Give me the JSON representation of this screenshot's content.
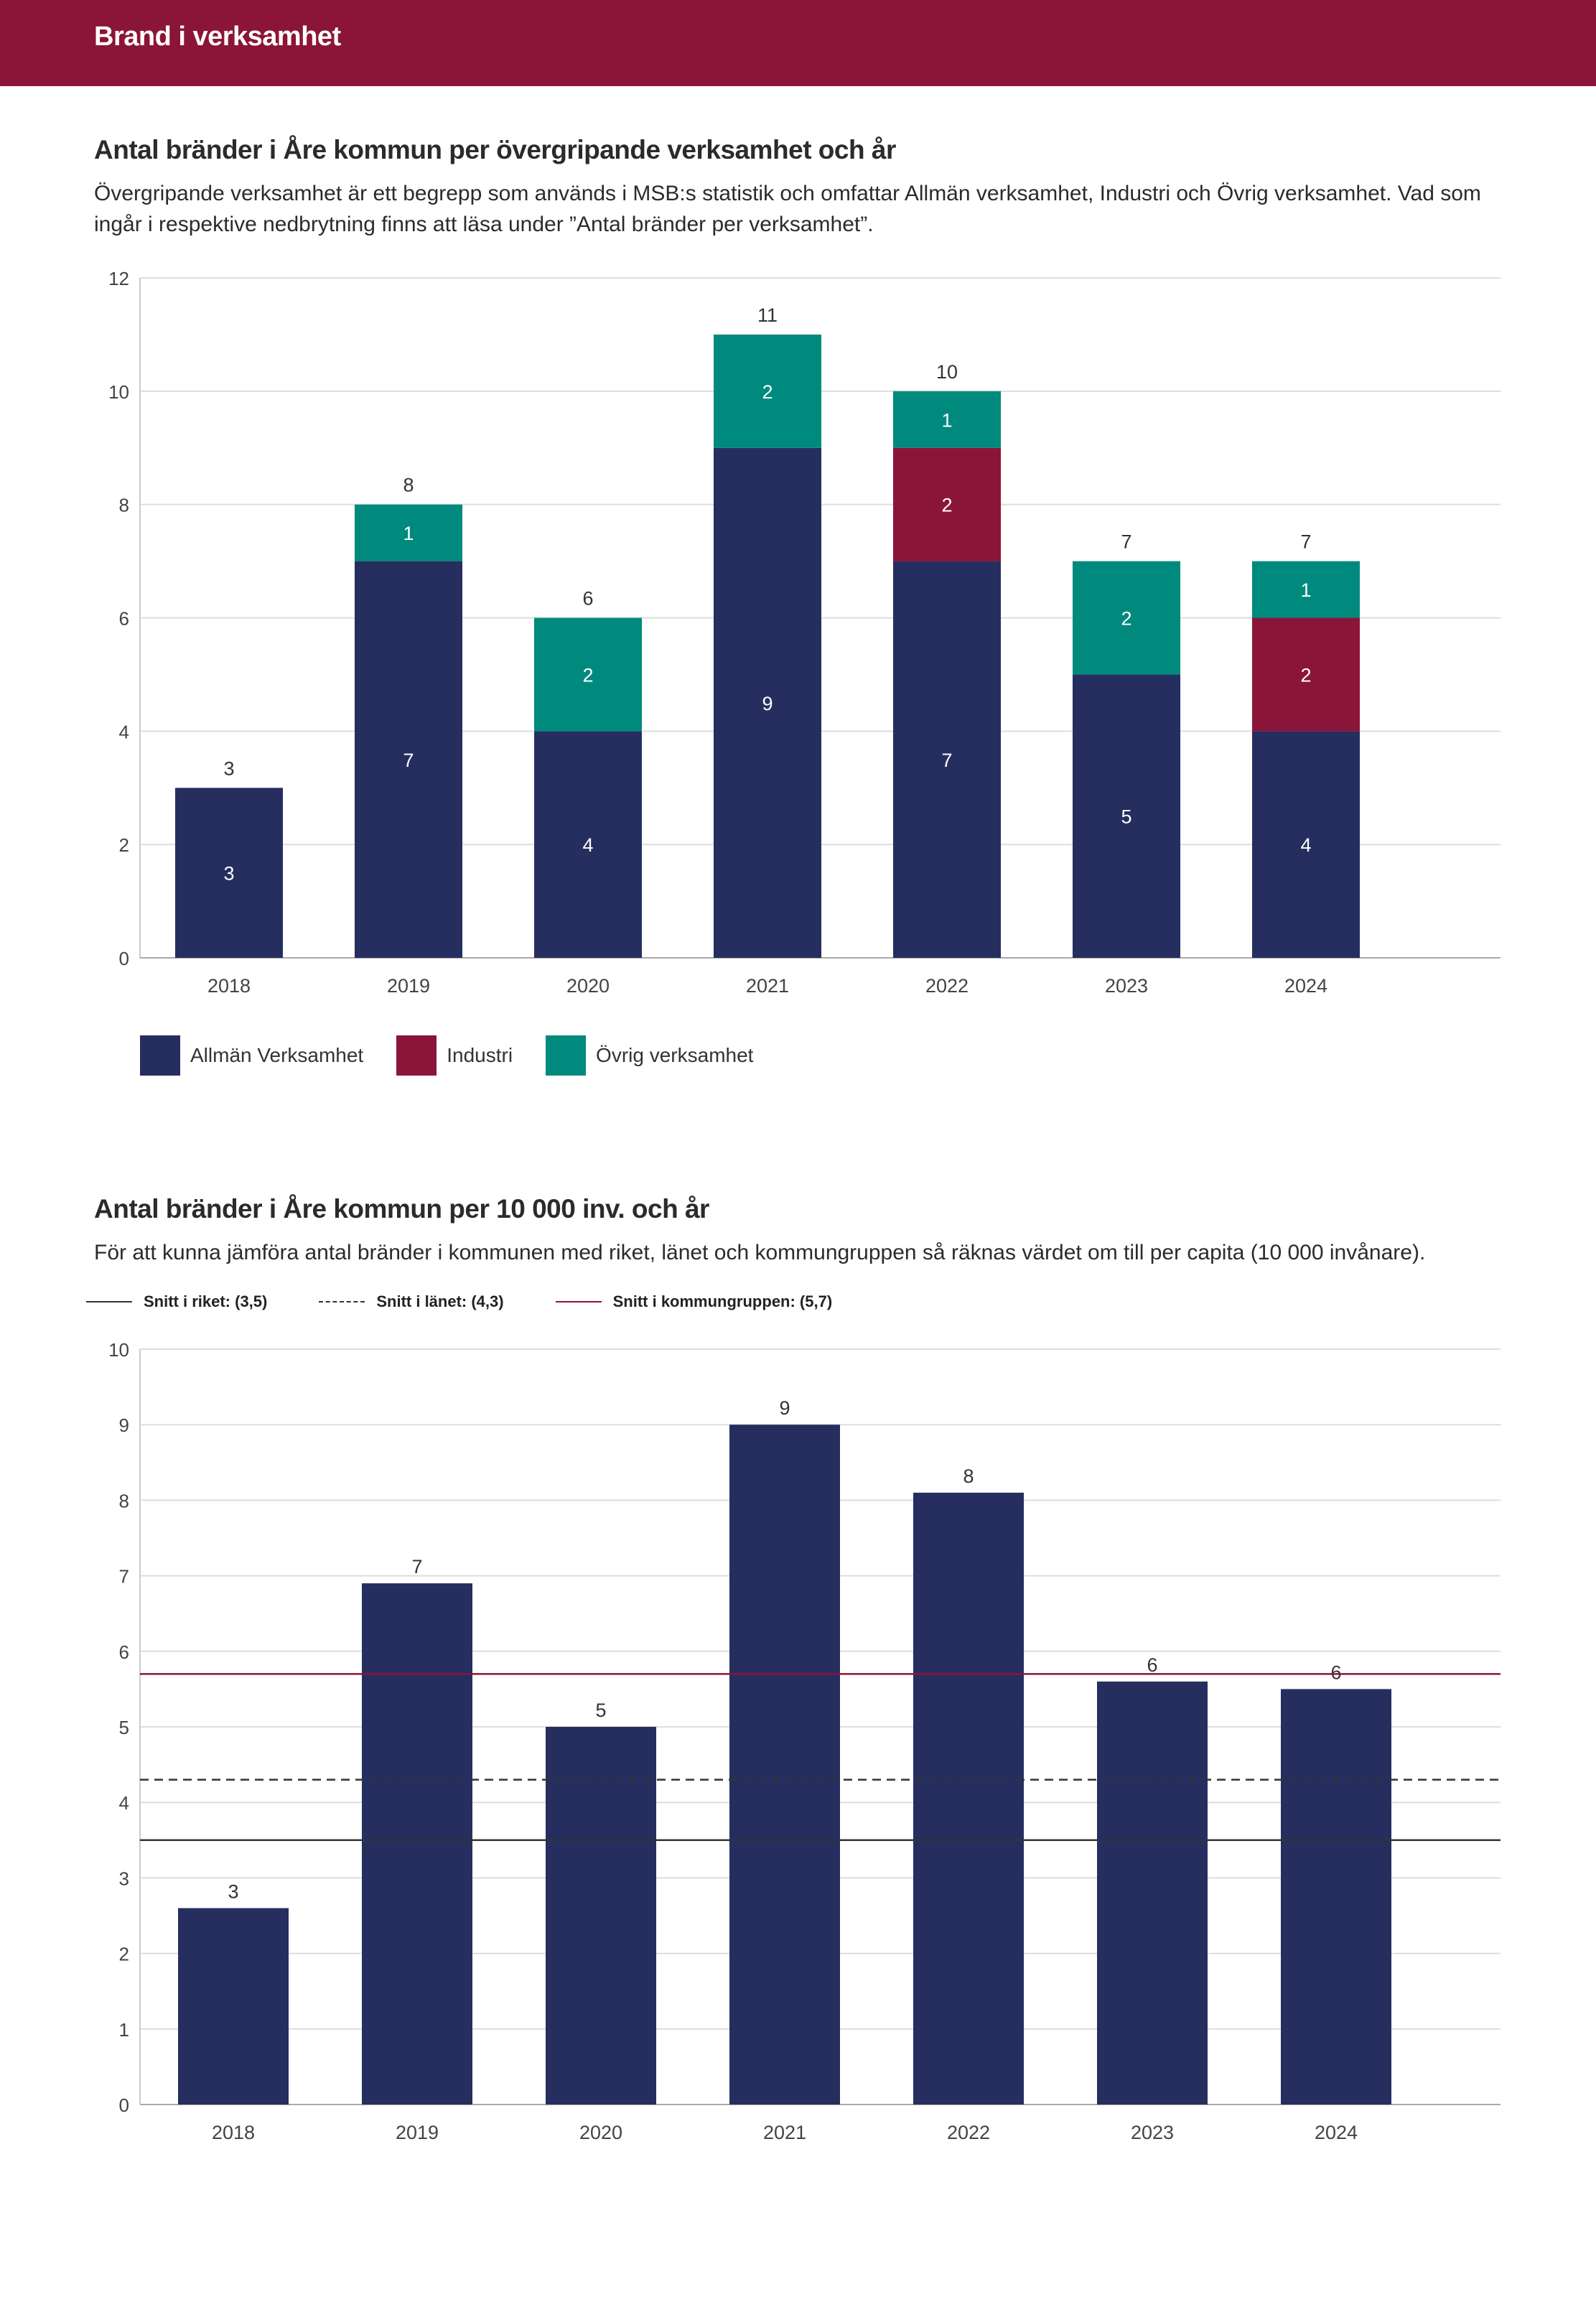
{
  "header": {
    "title": "Brand i verksamhet"
  },
  "colors": {
    "header_bg": "#8b1538",
    "allman": "#262e5f",
    "industri": "#8b1538",
    "ovrig": "#008a7e",
    "kommungrupp_line": "#8b1538"
  },
  "section1": {
    "title": "Antal bränder i Åre kommun per övergripande verksamhet och år",
    "description": "Övergripande verksamhet är ett begrepp som används i MSB:s statistik och omfattar Allmän verksamhet, Industri och Övrig verksamhet. Vad som ingår i respektive nedbrytning finns att läsa under ”Antal bränder per verksamhet”."
  },
  "section2": {
    "title": "Antal bränder i Åre kommun per 10 000 inv. och år",
    "description": "För att kunna jämföra antal bränder i kommunen med riket, länet och kommungruppen så räknas värdet om till per capita (10 000 invånare)."
  },
  "chart_data": [
    {
      "type": "bar",
      "stacked": true,
      "title": "Antal bränder i Åre kommun per övergripande verksamhet och år",
      "categories": [
        "2018",
        "2019",
        "2020",
        "2021",
        "2022",
        "2023",
        "2024"
      ],
      "series": [
        {
          "name": "Allmän Verksamhet",
          "color": "#262e5f",
          "values": [
            3,
            7,
            4,
            9,
            7,
            5,
            4
          ]
        },
        {
          "name": "Industri",
          "color": "#8b1538",
          "values": [
            0,
            0,
            0,
            0,
            2,
            0,
            2
          ]
        },
        {
          "name": "Övrig verksamhet",
          "color": "#008a7e",
          "values": [
            0,
            1,
            2,
            2,
            1,
            2,
            1
          ]
        }
      ],
      "totals": [
        3,
        8,
        6,
        11,
        10,
        7,
        7
      ],
      "ylim": [
        0,
        12
      ],
      "yticks": [
        0,
        2,
        4,
        6,
        8,
        10,
        12
      ],
      "grid": true,
      "legend": "bottom-left",
      "xlabel": "",
      "ylabel": ""
    },
    {
      "type": "bar",
      "title": "Antal bränder i Åre kommun per 10 000 inv. och år",
      "categories": [
        "2018",
        "2019",
        "2020",
        "2021",
        "2022",
        "2023",
        "2024"
      ],
      "values": [
        2.6,
        6.9,
        5.0,
        9.0,
        8.1,
        5.6,
        5.5
      ],
      "labels": [
        "3",
        "7",
        "5",
        "9",
        "8",
        "6",
        "6"
      ],
      "bar_color": "#262e5f",
      "reference_lines": [
        {
          "name": "Snitt i riket: (3,5)",
          "value": 3.5,
          "style": "solid",
          "color": "#333333"
        },
        {
          "name": "Snitt i länet: (4,3)",
          "value": 4.3,
          "style": "dashed",
          "color": "#333333"
        },
        {
          "name": "Snitt i kommungruppen: (5,7)",
          "value": 5.7,
          "style": "solid",
          "color": "#8b1538"
        }
      ],
      "ylim": [
        0,
        10
      ],
      "yticks": [
        0,
        1,
        2,
        3,
        4,
        5,
        6,
        7,
        8,
        9,
        10
      ],
      "grid": true,
      "legend": "top-left",
      "xlabel": "",
      "ylabel": ""
    }
  ]
}
